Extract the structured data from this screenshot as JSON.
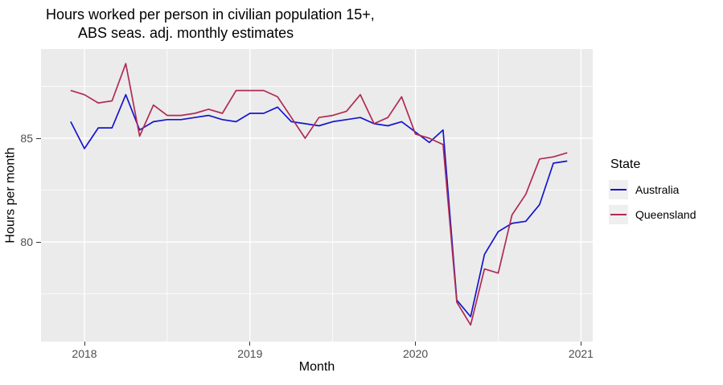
{
  "title": {
    "line1": "Hours worked per person in civilian population 15+,",
    "line2": "ABS seas. adj. monthly estimates"
  },
  "axes": {
    "x_label": "Month",
    "y_label": "Hours per month",
    "x_ticks": [
      {
        "label": "2018",
        "month": "2018-01"
      },
      {
        "label": "2019",
        "month": "2019-01"
      },
      {
        "label": "2020",
        "month": "2020-01"
      },
      {
        "label": "2021",
        "month": "2021-01"
      }
    ],
    "y_ticks": [
      {
        "label": "85",
        "value": 85
      },
      {
        "label": "80",
        "value": 80
      }
    ]
  },
  "legend": {
    "title": "State",
    "entries": [
      {
        "label": "Australia",
        "color": "#1515CC"
      },
      {
        "label": "Queensland",
        "color": "#AF2B53"
      }
    ]
  },
  "chart_data": {
    "type": "line",
    "title": "Hours worked per person in civilian population 15+, ABS seas. adj. monthly estimates",
    "xlabel": "Month",
    "ylabel": "Hours per month",
    "x": [
      "2017-12",
      "2018-01",
      "2018-02",
      "2018-03",
      "2018-04",
      "2018-05",
      "2018-06",
      "2018-07",
      "2018-08",
      "2018-09",
      "2018-10",
      "2018-11",
      "2018-12",
      "2019-01",
      "2019-02",
      "2019-03",
      "2019-04",
      "2019-05",
      "2019-06",
      "2019-07",
      "2019-08",
      "2019-09",
      "2019-10",
      "2019-11",
      "2019-12",
      "2020-01",
      "2020-02",
      "2020-03",
      "2020-04",
      "2020-05",
      "2020-06",
      "2020-07",
      "2020-08",
      "2020-09",
      "2020-10",
      "2020-11",
      "2020-12"
    ],
    "series": [
      {
        "name": "Australia",
        "color": "#1515CC",
        "values": [
          85.8,
          84.5,
          85.5,
          85.5,
          87.1,
          85.4,
          85.8,
          85.9,
          85.9,
          86.0,
          86.1,
          85.9,
          85.8,
          86.2,
          86.2,
          86.5,
          85.8,
          85.7,
          85.6,
          85.8,
          85.9,
          86.0,
          85.7,
          85.6,
          85.8,
          85.3,
          84.8,
          85.4,
          77.2,
          76.4,
          79.4,
          80.5,
          80.9,
          81.0,
          81.8,
          83.8,
          83.9
        ]
      },
      {
        "name": "Queensland",
        "color": "#AF2B53",
        "values": [
          87.3,
          87.1,
          86.7,
          86.8,
          88.6,
          85.1,
          86.6,
          86.1,
          86.1,
          86.2,
          86.4,
          86.2,
          87.3,
          87.3,
          87.3,
          87.0,
          86.0,
          85.0,
          86.0,
          86.1,
          86.3,
          87.1,
          85.7,
          86.0,
          87.0,
          85.2,
          85.0,
          84.7,
          77.1,
          76.0,
          78.7,
          78.5,
          81.3,
          82.3,
          84.0,
          84.1,
          84.3
        ]
      }
    ],
    "ylim": [
      75.2,
      89.3
    ],
    "y_major_gridlines": [
      80,
      85
    ],
    "y_minor_gridlines": [
      77.5,
      82.5,
      87.5
    ],
    "x_major_gridlines": [
      "2018-01",
      "2019-01",
      "2020-01",
      "2021-01"
    ],
    "x_minor_gridlines": [
      "2018-07",
      "2019-07",
      "2020-07"
    ],
    "legend_position": "right",
    "panel_background": "#EBEBEB",
    "gridline_color": "#FFFFFF"
  }
}
